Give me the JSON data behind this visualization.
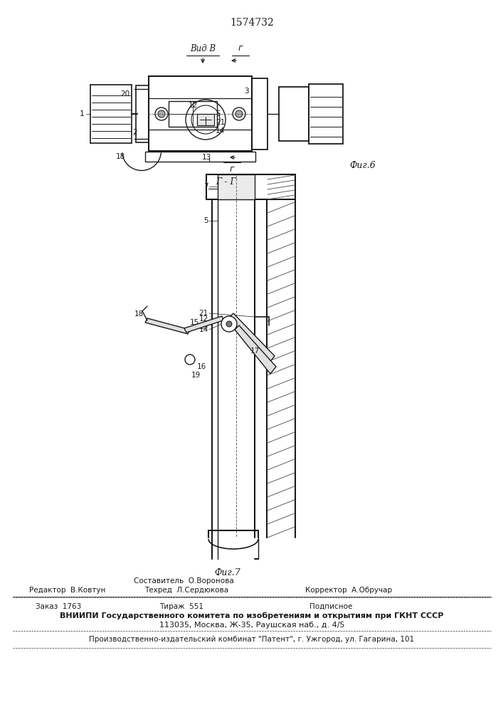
{
  "patent_number": "1574732",
  "background_color": "#ffffff",
  "line_color": "#1a1a1a",
  "fig6_label": "Фиг.6",
  "fig7_label": "Фиг.7",
  "view_label": "Вид В",
  "section_label": "Г - Г",
  "footer_sestavitel": "Составитель  О.Воронова",
  "footer_line1_left": "Редактор  В.Ковтун",
  "footer_line1_center": "Техред  Л.Сердюкова",
  "footer_line1_right": "Корректор  А.Обручар",
  "footer_zakaz": "Заказ  1763",
  "footer_tirazh": "Тираж  551",
  "footer_podpisnoe": "Подписное",
  "footer_vniiipi": "ВНИИПИ Государственного комитета по изобретениям и открытиям при ГКНТ СССР",
  "footer_address": "113035, Москва, Ж-35, Раушская наб., д. 4/5",
  "footer_kombinat": "Производственно-издательский комбинат \"Патент\", г. Ужгород, ул. Гагарина, 101"
}
